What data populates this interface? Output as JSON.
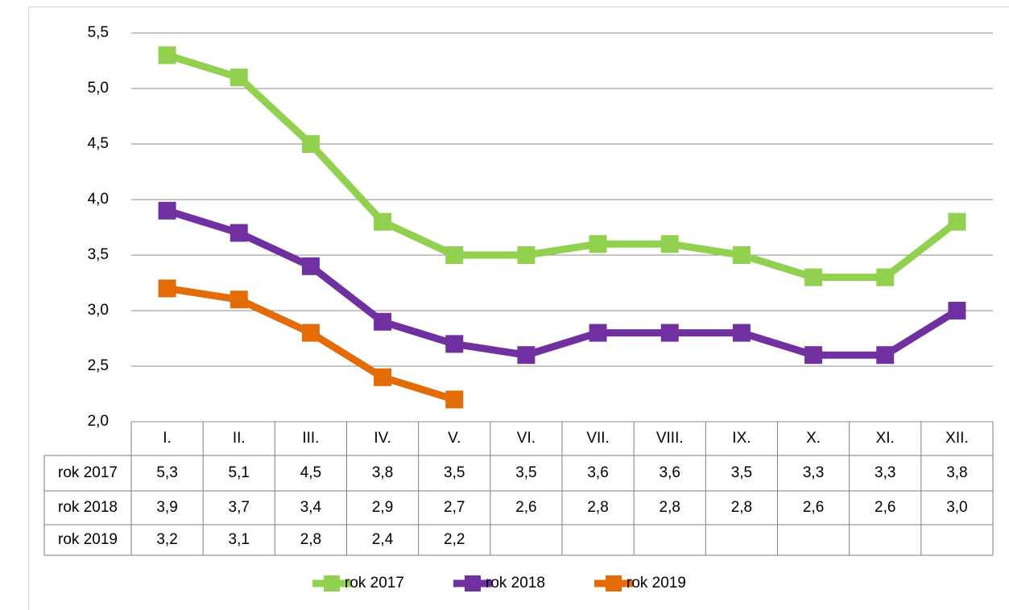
{
  "chart_data": {
    "type": "line",
    "categories": [
      "I.",
      "II.",
      "III.",
      "IV.",
      "V.",
      "VI.",
      "VII.",
      "VIII.",
      "IX.",
      "X.",
      "XI.",
      "XII."
    ],
    "series": [
      {
        "name": "rok 2017",
        "color": "#92d050",
        "values": [
          5.3,
          5.1,
          4.5,
          3.8,
          3.5,
          3.5,
          3.6,
          3.6,
          3.5,
          3.3,
          3.3,
          3.8
        ],
        "value_labels": [
          "5,3",
          "5,1",
          "4,5",
          "3,8",
          "3,5",
          "3,5",
          "3,6",
          "3,6",
          "3,5",
          "3,3",
          "3,3",
          "3,8"
        ]
      },
      {
        "name": "rok 2018",
        "color": "#7030a0",
        "values": [
          3.9,
          3.7,
          3.4,
          2.9,
          2.7,
          2.6,
          2.8,
          2.8,
          2.8,
          2.6,
          2.6,
          3.0
        ],
        "value_labels": [
          "3,9",
          "3,7",
          "3,4",
          "2,9",
          "2,7",
          "2,6",
          "2,8",
          "2,8",
          "2,8",
          "2,6",
          "2,6",
          "3,0"
        ]
      },
      {
        "name": "rok 2019",
        "color": "#e36c09",
        "values": [
          3.2,
          3.1,
          2.8,
          2.4,
          2.2,
          null,
          null,
          null,
          null,
          null,
          null,
          null
        ],
        "value_labels": [
          "3,2",
          "3,1",
          "2,8",
          "2,4",
          "2,2",
          null,
          null,
          null,
          null,
          null,
          null,
          null
        ]
      }
    ],
    "ylim": [
      2.0,
      5.5
    ],
    "yticks": [
      {
        "value": 2.0,
        "label": "2,0"
      },
      {
        "value": 2.5,
        "label": "2,5"
      },
      {
        "value": 3.0,
        "label": "3,0"
      },
      {
        "value": 3.5,
        "label": "3,5"
      },
      {
        "value": 4.0,
        "label": "4,0"
      },
      {
        "value": 4.5,
        "label": "4,5"
      },
      {
        "value": 5.0,
        "label": "5,0"
      },
      {
        "value": 5.5,
        "label": "5,5"
      }
    ],
    "grid": true,
    "legend": "bottom"
  }
}
